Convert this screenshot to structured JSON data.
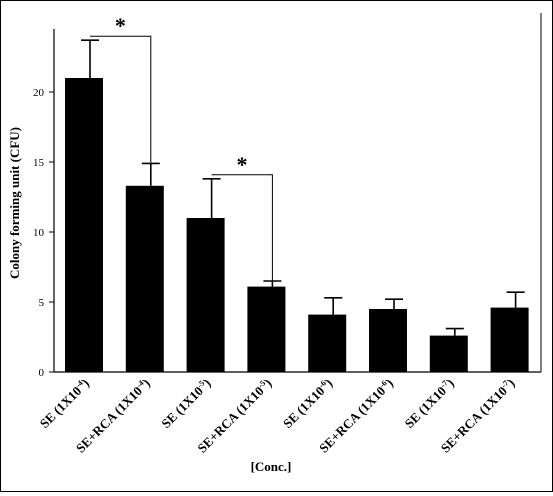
{
  "chart_data": {
    "type": "bar",
    "ylabel": "Colony forming unit (CFU)",
    "xlabel": "[Conc.]",
    "ylim": [
      0,
      25
    ],
    "yticks": [
      "0",
      "5",
      "10",
      "15",
      "20"
    ],
    "categories": [
      {
        "base": "SE (1X10",
        "exp": "-4",
        "tail": ")"
      },
      {
        "base": "SE+RCA (1X10",
        "exp": "-4",
        "tail": ")"
      },
      {
        "base": "SE (1X10",
        "exp": "-5",
        "tail": ")"
      },
      {
        "base": "SE+RCA (1X10",
        "exp": "-5",
        "tail": ")"
      },
      {
        "base": "SE (1X10",
        "exp": "-6",
        "tail": ")"
      },
      {
        "base": "SE+RCA (1X10",
        "exp": "-6",
        "tail": ")"
      },
      {
        "base": "SE (1X10",
        "exp": "-7",
        "tail": ")"
      },
      {
        "base": "SE+RCA (1X10",
        "exp": "-7",
        "tail": ")"
      }
    ],
    "values": [
      21.0,
      13.3,
      11.0,
      6.1,
      4.1,
      4.5,
      2.6,
      4.6
    ],
    "errors": [
      2.7,
      1.6,
      2.8,
      0.4,
      1.2,
      0.7,
      0.5,
      1.1
    ],
    "significance": [
      {
        "from": 0,
        "to": 1,
        "label": "*"
      },
      {
        "from": 2,
        "to": 3,
        "label": "*"
      }
    ],
    "bar_color": "#000000"
  }
}
